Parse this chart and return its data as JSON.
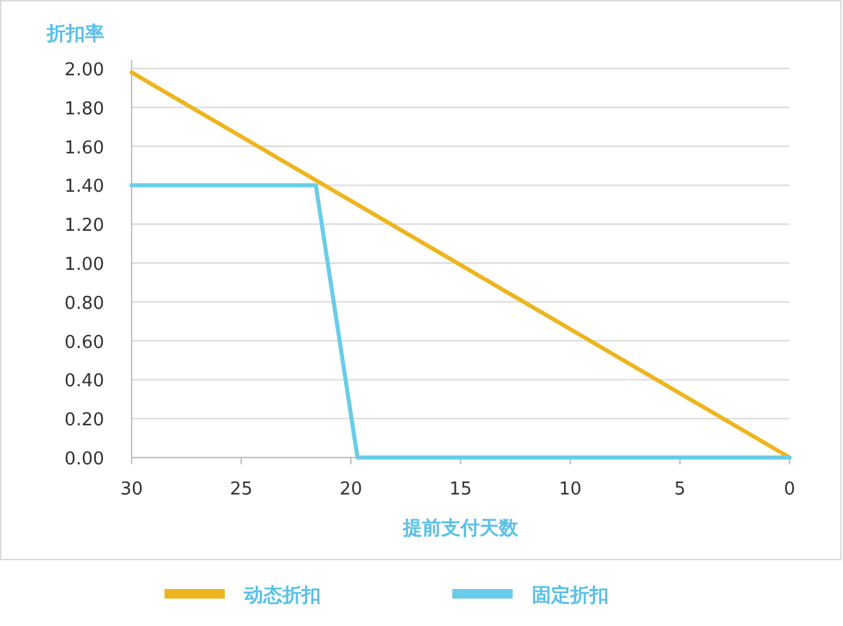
{
  "chart_data": {
    "type": "line",
    "xlabel": "提前支付天数",
    "ylabel": "折扣率",
    "xlim": [
      30,
      0
    ],
    "xticks": [
      30,
      25,
      20,
      15,
      10,
      5,
      0
    ],
    "ylim": [
      0,
      2
    ],
    "yticks": [
      {
        "value": 0,
        "label": "0.00"
      },
      {
        "value": 0.2,
        "label": "0.20"
      },
      {
        "value": 0.4,
        "label": "0.40"
      },
      {
        "value": 0.6,
        "label": "0.60"
      },
      {
        "value": 0.8,
        "label": "0.80"
      },
      {
        "value": 1,
        "label": "1.00"
      },
      {
        "value": 1.2,
        "label": "1.20"
      },
      {
        "value": 1.4,
        "label": "1.40"
      },
      {
        "value": 1.6,
        "label": "1.60"
      },
      {
        "value": 1.8,
        "label": "1.80"
      },
      {
        "value": 2,
        "label": "2.00"
      }
    ],
    "grid": "y",
    "legend": "bottom",
    "marker": "none",
    "line_style": "solid",
    "series": [
      {
        "name": "动态折扣",
        "color": "#edb51f",
        "x": [
          30,
          0
        ],
        "values": [
          1.98,
          0
        ]
      },
      {
        "name": "固定折扣",
        "color": "#69cce8",
        "x": [
          30,
          21.6,
          19.7,
          0
        ],
        "values": [
          1.4,
          1.4,
          0,
          0
        ]
      }
    ]
  }
}
